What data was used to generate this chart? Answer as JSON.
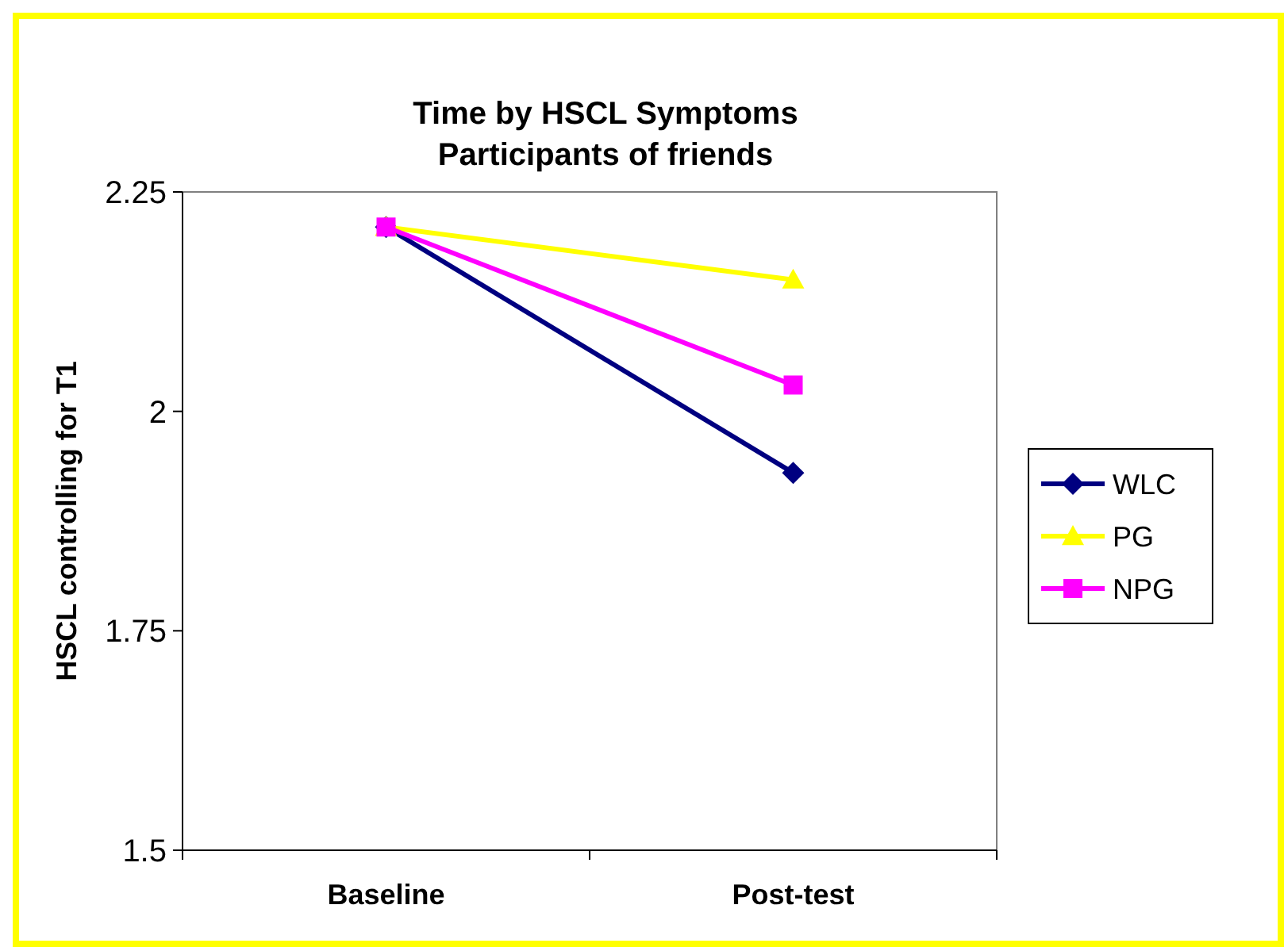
{
  "chart_data": {
    "type": "line",
    "title": "Time by HSCL Symptoms\nParticipants of friends",
    "ylabel": "HSCL controlling for T1",
    "categories": [
      "Baseline",
      "Post-test"
    ],
    "ylim": [
      1.5,
      2.25
    ],
    "yticks": [
      1.5,
      1.75,
      2,
      2.25
    ],
    "legend": "right",
    "grid": false,
    "series": [
      {
        "name": "WLC",
        "color": "#000080",
        "marker": "diamond",
        "values": [
          2.21,
          1.93
        ]
      },
      {
        "name": "PG",
        "color": "#ffff00",
        "marker": "triangle",
        "values": [
          2.21,
          2.15
        ]
      },
      {
        "name": "NPG",
        "color": "#ff00ff",
        "marker": "square",
        "values": [
          2.21,
          2.03
        ]
      }
    ]
  }
}
